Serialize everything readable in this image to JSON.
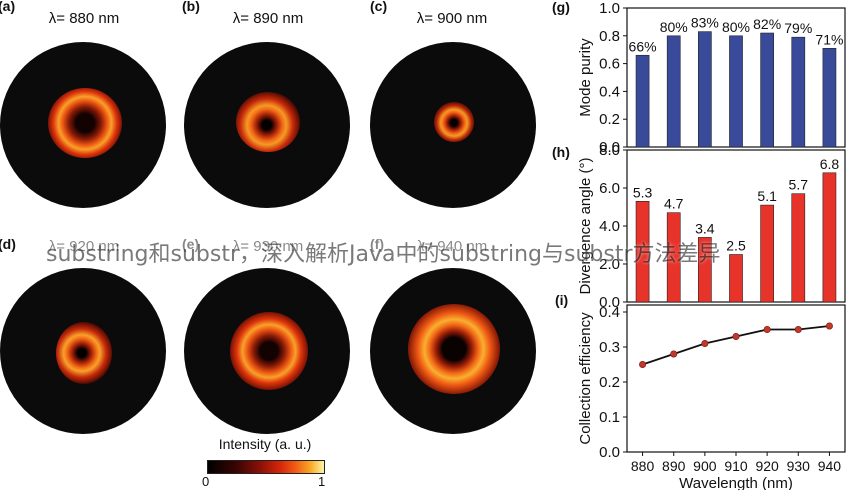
{
  "beam_panels": [
    {
      "letter": "(a)",
      "title": "λ= 880 nm"
    },
    {
      "letter": "(b)",
      "title": "λ= 890 nm"
    },
    {
      "letter": "(c)",
      "title": "λ= 900 nm"
    },
    {
      "letter": "(d)",
      "title": "λ= 920 nm"
    },
    {
      "letter": "(e)",
      "title": "λ= 930 nm"
    },
    {
      "letter": "(f)",
      "title": "λ= 940 nm"
    }
  ],
  "colorbar": {
    "title": "Intensity (a. u.)",
    "min_label": "0",
    "max_label": "1"
  },
  "overlay_text": "substring和substr，深入解析Java中的substring与substr方法差异",
  "colors": {
    "bar_blue": "#3a4a9a",
    "bar_red": "#e8332a",
    "line_black": "#111111",
    "marker_red": "#c0392b"
  },
  "chart_data": [
    {
      "id": "g",
      "letter": "(g)",
      "type": "bar",
      "categories": [
        "880",
        "890",
        "900",
        "910",
        "920",
        "930",
        "940"
      ],
      "values": [
        0.66,
        0.8,
        0.83,
        0.8,
        0.82,
        0.79,
        0.71
      ],
      "data_labels": [
        "66%",
        "80%",
        "83%",
        "80%",
        "82%",
        "79%",
        "71%"
      ],
      "ylabel": "Mode purity",
      "ylim": [
        0,
        1.0
      ],
      "yticks": [
        "0.0",
        "0.2",
        "0.4",
        "0.6",
        "0.8",
        "1.0"
      ],
      "ytick_values": [
        0,
        0.2,
        0.4,
        0.6,
        0.8,
        1.0
      ]
    },
    {
      "id": "h",
      "letter": "(h)",
      "type": "bar",
      "categories": [
        "880",
        "890",
        "900",
        "910",
        "920",
        "930",
        "940"
      ],
      "values": [
        5.3,
        4.7,
        3.4,
        2.5,
        5.1,
        5.7,
        6.8
      ],
      "data_labels": [
        "5.3",
        "4.7",
        "3.4",
        "2.5",
        "5.1",
        "5.7",
        "6.8"
      ],
      "ylabel": "Divergence angle (°)",
      "ylim": [
        0,
        8.0
      ],
      "yticks": [
        "0.0",
        "2.0",
        "4.0",
        "6.0",
        "8.0"
      ],
      "ytick_values": [
        0,
        2,
        4,
        6,
        8
      ]
    },
    {
      "id": "i",
      "letter": "(i)",
      "type": "line",
      "x": [
        880,
        890,
        900,
        910,
        920,
        930,
        940
      ],
      "values": [
        0.25,
        0.28,
        0.31,
        0.33,
        0.35,
        0.35,
        0.36
      ],
      "ylabel": "Collection efficiency",
      "xlabel": "Wavelength (nm)",
      "ylim": [
        0.0,
        0.42
      ],
      "yticks": [
        "0.0",
        "0.1",
        "0.2",
        "0.3",
        "0.4"
      ],
      "ytick_values": [
        0,
        0.1,
        0.2,
        0.3,
        0.4
      ],
      "xticks": [
        "880",
        "890",
        "900",
        "910",
        "920",
        "930",
        "940"
      ]
    }
  ]
}
